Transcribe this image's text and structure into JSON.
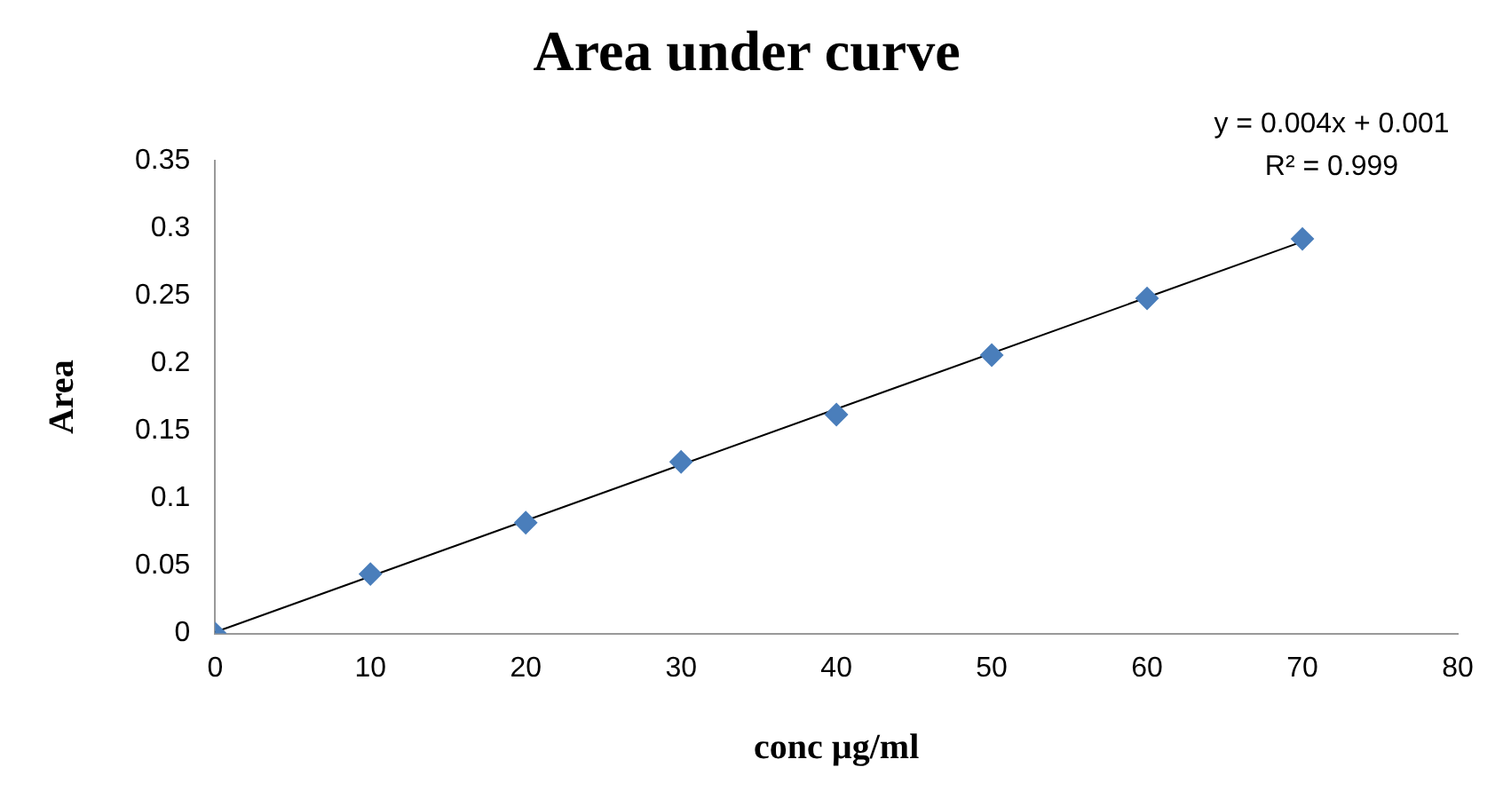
{
  "chart_data": {
    "type": "scatter",
    "title": "Area under curve",
    "xlabel": "conc µg/ml",
    "ylabel": "Area",
    "x": [
      0,
      10,
      20,
      30,
      40,
      50,
      60,
      70
    ],
    "series": [
      {
        "color": "#4a7ebb",
        "marker": "diamond",
        "values": [
          0,
          0.044,
          0.082,
          0.127,
          0.162,
          0.206,
          0.248,
          0.292
        ]
      },
      {
        "type": "line",
        "color": "#000000",
        "marker": "none",
        "x": [
          0,
          70
        ],
        "values": [
          0.001,
          0.29
        ]
      }
    ],
    "xlim": [
      0,
      80
    ],
    "xticks": [
      0,
      10,
      20,
      30,
      40,
      50,
      60,
      70,
      80
    ],
    "ylim": [
      0,
      0.35
    ],
    "yticks": [
      0,
      0.05,
      0.1,
      0.15,
      0.2,
      0.25,
      0.3,
      0.35
    ],
    "grid": false,
    "legend": false,
    "annotations": [
      "y = 0.004x + 0.001",
      "R² = 0.999"
    ]
  }
}
